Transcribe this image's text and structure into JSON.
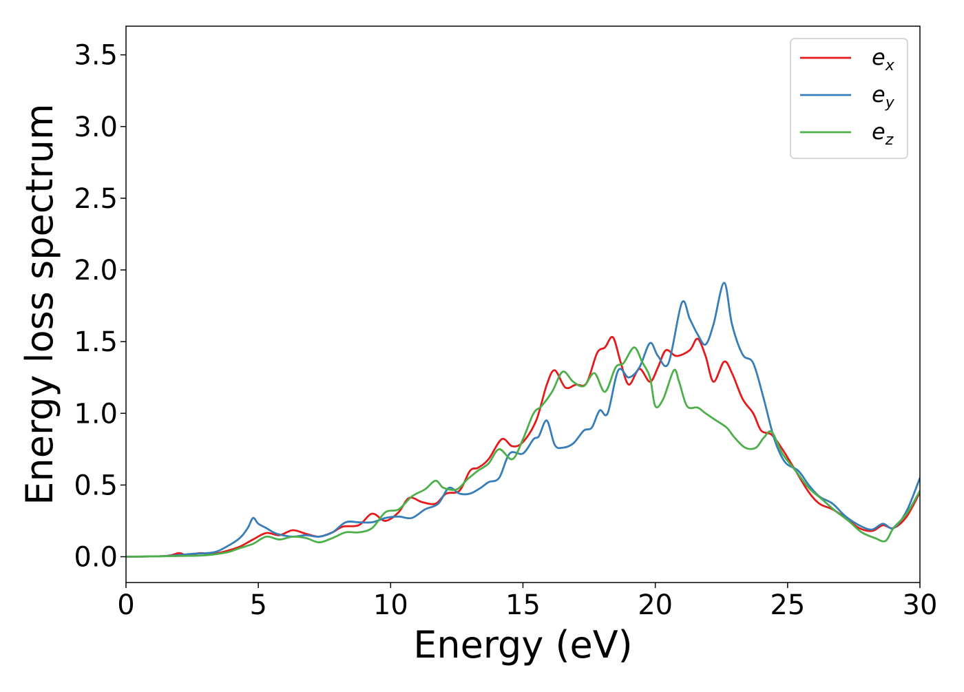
{
  "chart_data": {
    "type": "line",
    "xlabel": "Energy (eV)",
    "ylabel": "Energy loss spectrum",
    "xlim": [
      0,
      30
    ],
    "ylim": [
      -0.18,
      3.7
    ],
    "xticks": [
      0,
      5,
      10,
      15,
      20,
      25,
      30
    ],
    "xtick_labels": [
      "0",
      "5",
      "10",
      "15",
      "20",
      "25",
      "30"
    ],
    "yticks": [
      0.0,
      0.5,
      1.0,
      1.5,
      2.0,
      2.5,
      3.0,
      3.5
    ],
    "ytick_labels": [
      "0.0",
      "0.5",
      "1.0",
      "1.5",
      "2.0",
      "2.5",
      "3.0",
      "3.5"
    ],
    "grid": false,
    "legend_position": "top-right",
    "series": [
      {
        "name": "e",
        "subscript": "x",
        "color": "#e41a1c",
        "points": [
          [
            0,
            0.0
          ],
          [
            1.5,
            0.005
          ],
          [
            2.0,
            0.025
          ],
          [
            2.3,
            0.01
          ],
          [
            2.8,
            0.025
          ],
          [
            3.3,
            0.02
          ],
          [
            3.8,
            0.04
          ],
          [
            4.3,
            0.07
          ],
          [
            4.8,
            0.12
          ],
          [
            5.3,
            0.165
          ],
          [
            5.8,
            0.15
          ],
          [
            6.3,
            0.185
          ],
          [
            6.8,
            0.16
          ],
          [
            7.3,
            0.14
          ],
          [
            7.8,
            0.17
          ],
          [
            8.2,
            0.21
          ],
          [
            8.8,
            0.22
          ],
          [
            9.3,
            0.3
          ],
          [
            9.8,
            0.25
          ],
          [
            10.3,
            0.31
          ],
          [
            10.7,
            0.41
          ],
          [
            11.2,
            0.38
          ],
          [
            11.7,
            0.37
          ],
          [
            12.1,
            0.44
          ],
          [
            12.6,
            0.46
          ],
          [
            13.0,
            0.6
          ],
          [
            13.3,
            0.62
          ],
          [
            13.7,
            0.68
          ],
          [
            14.2,
            0.82
          ],
          [
            14.6,
            0.77
          ],
          [
            15.0,
            0.8
          ],
          [
            15.5,
            0.95
          ],
          [
            15.9,
            1.2
          ],
          [
            16.2,
            1.3
          ],
          [
            16.6,
            1.18
          ],
          [
            17.0,
            1.2
          ],
          [
            17.4,
            1.21
          ],
          [
            17.8,
            1.42
          ],
          [
            18.1,
            1.46
          ],
          [
            18.4,
            1.53
          ],
          [
            18.7,
            1.35
          ],
          [
            19.0,
            1.2
          ],
          [
            19.4,
            1.31
          ],
          [
            19.8,
            1.22
          ],
          [
            20.1,
            1.32
          ],
          [
            20.4,
            1.44
          ],
          [
            20.8,
            1.4
          ],
          [
            21.3,
            1.44
          ],
          [
            21.6,
            1.52
          ],
          [
            21.9,
            1.4
          ],
          [
            22.2,
            1.22
          ],
          [
            22.6,
            1.36
          ],
          [
            22.9,
            1.28
          ],
          [
            23.3,
            1.1
          ],
          [
            23.7,
            1.0
          ],
          [
            24.0,
            0.88
          ],
          [
            24.4,
            0.85
          ],
          [
            24.8,
            0.75
          ],
          [
            25.3,
            0.6
          ],
          [
            25.8,
            0.45
          ],
          [
            26.2,
            0.37
          ],
          [
            26.7,
            0.33
          ],
          [
            27.2,
            0.27
          ],
          [
            27.7,
            0.2
          ],
          [
            28.2,
            0.18
          ],
          [
            28.6,
            0.22
          ],
          [
            29.0,
            0.2
          ],
          [
            29.5,
            0.28
          ],
          [
            30.0,
            0.45
          ]
        ]
      },
      {
        "name": "e",
        "subscript": "y",
        "color": "#377eb8",
        "points": [
          [
            0,
            0.0
          ],
          [
            1.5,
            0.005
          ],
          [
            2.5,
            0.02
          ],
          [
            3.3,
            0.03
          ],
          [
            3.8,
            0.07
          ],
          [
            4.3,
            0.13
          ],
          [
            4.6,
            0.2
          ],
          [
            4.8,
            0.27
          ],
          [
            5.0,
            0.23
          ],
          [
            5.3,
            0.2
          ],
          [
            5.7,
            0.16
          ],
          [
            6.3,
            0.14
          ],
          [
            6.8,
            0.15
          ],
          [
            7.3,
            0.14
          ],
          [
            7.8,
            0.17
          ],
          [
            8.3,
            0.24
          ],
          [
            8.8,
            0.24
          ],
          [
            9.3,
            0.24
          ],
          [
            9.8,
            0.27
          ],
          [
            10.3,
            0.28
          ],
          [
            10.8,
            0.27
          ],
          [
            11.3,
            0.33
          ],
          [
            11.8,
            0.37
          ],
          [
            12.2,
            0.48
          ],
          [
            12.6,
            0.44
          ],
          [
            13.0,
            0.44
          ],
          [
            13.4,
            0.48
          ],
          [
            13.7,
            0.52
          ],
          [
            14.1,
            0.55
          ],
          [
            14.5,
            0.72
          ],
          [
            15.0,
            0.72
          ],
          [
            15.4,
            0.82
          ],
          [
            15.6,
            0.84
          ],
          [
            15.9,
            0.95
          ],
          [
            16.2,
            0.78
          ],
          [
            16.5,
            0.76
          ],
          [
            16.9,
            0.79
          ],
          [
            17.3,
            0.88
          ],
          [
            17.6,
            0.9
          ],
          [
            17.9,
            1.02
          ],
          [
            18.2,
            1.0
          ],
          [
            18.6,
            1.3
          ],
          [
            19.0,
            1.25
          ],
          [
            19.4,
            1.32
          ],
          [
            19.8,
            1.49
          ],
          [
            20.1,
            1.4
          ],
          [
            20.5,
            1.35
          ],
          [
            21.0,
            1.77
          ],
          [
            21.3,
            1.66
          ],
          [
            21.6,
            1.55
          ],
          [
            21.9,
            1.48
          ],
          [
            22.2,
            1.62
          ],
          [
            22.6,
            1.91
          ],
          [
            22.9,
            1.62
          ],
          [
            23.3,
            1.41
          ],
          [
            23.7,
            1.35
          ],
          [
            24.1,
            1.1
          ],
          [
            24.5,
            0.82
          ],
          [
            24.9,
            0.66
          ],
          [
            25.4,
            0.6
          ],
          [
            25.8,
            0.5
          ],
          [
            26.2,
            0.42
          ],
          [
            26.7,
            0.37
          ],
          [
            27.2,
            0.28
          ],
          [
            27.8,
            0.21
          ],
          [
            28.2,
            0.19
          ],
          [
            28.6,
            0.23
          ],
          [
            29.0,
            0.2
          ],
          [
            29.5,
            0.32
          ],
          [
            30.0,
            0.55
          ]
        ]
      },
      {
        "name": "e",
        "subscript": "z",
        "color": "#4daf4a",
        "points": [
          [
            0,
            0.0
          ],
          [
            2.0,
            0.005
          ],
          [
            3.0,
            0.01
          ],
          [
            3.8,
            0.03
          ],
          [
            4.3,
            0.06
          ],
          [
            4.8,
            0.09
          ],
          [
            5.3,
            0.14
          ],
          [
            5.8,
            0.12
          ],
          [
            6.3,
            0.14
          ],
          [
            6.8,
            0.13
          ],
          [
            7.3,
            0.1
          ],
          [
            7.8,
            0.13
          ],
          [
            8.3,
            0.17
          ],
          [
            8.8,
            0.17
          ],
          [
            9.3,
            0.2
          ],
          [
            9.8,
            0.31
          ],
          [
            10.3,
            0.33
          ],
          [
            10.8,
            0.42
          ],
          [
            11.3,
            0.47
          ],
          [
            11.7,
            0.53
          ],
          [
            12.0,
            0.48
          ],
          [
            12.5,
            0.47
          ],
          [
            12.9,
            0.54
          ],
          [
            13.3,
            0.6
          ],
          [
            13.7,
            0.65
          ],
          [
            14.1,
            0.75
          ],
          [
            14.6,
            0.68
          ],
          [
            15.0,
            0.82
          ],
          [
            15.4,
            1.0
          ],
          [
            15.7,
            1.05
          ],
          [
            16.1,
            1.15
          ],
          [
            16.5,
            1.29
          ],
          [
            16.9,
            1.22
          ],
          [
            17.3,
            1.19
          ],
          [
            17.7,
            1.28
          ],
          [
            18.1,
            1.15
          ],
          [
            18.5,
            1.32
          ],
          [
            18.8,
            1.35
          ],
          [
            19.2,
            1.46
          ],
          [
            19.5,
            1.36
          ],
          [
            19.8,
            1.25
          ],
          [
            20.0,
            1.05
          ],
          [
            20.3,
            1.1
          ],
          [
            20.7,
            1.3
          ],
          [
            20.9,
            1.22
          ],
          [
            21.2,
            1.05
          ],
          [
            21.6,
            1.04
          ],
          [
            21.9,
            1.0
          ],
          [
            22.3,
            0.95
          ],
          [
            22.7,
            0.9
          ],
          [
            23.0,
            0.83
          ],
          [
            23.4,
            0.76
          ],
          [
            23.8,
            0.76
          ],
          [
            24.1,
            0.83
          ],
          [
            24.4,
            0.87
          ],
          [
            24.8,
            0.72
          ],
          [
            25.3,
            0.6
          ],
          [
            25.8,
            0.48
          ],
          [
            26.3,
            0.4
          ],
          [
            26.8,
            0.32
          ],
          [
            27.3,
            0.25
          ],
          [
            27.8,
            0.17
          ],
          [
            28.3,
            0.13
          ],
          [
            28.7,
            0.11
          ],
          [
            29.0,
            0.2
          ],
          [
            29.5,
            0.3
          ],
          [
            30.0,
            0.46
          ]
        ]
      }
    ]
  }
}
